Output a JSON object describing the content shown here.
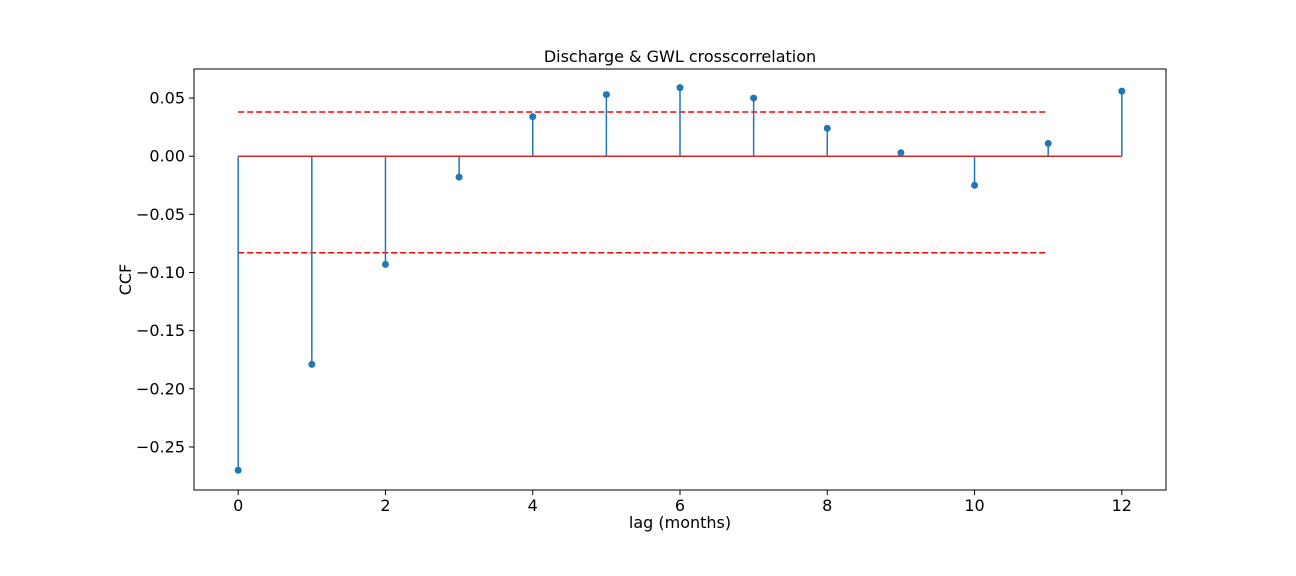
{
  "chart_data": {
    "type": "stem",
    "title": "Discharge & GWL crosscorrelation",
    "xlabel": "lag (months)",
    "ylabel": "CCF",
    "x": [
      0,
      1,
      2,
      3,
      4,
      5,
      6,
      7,
      8,
      9,
      10,
      11,
      12
    ],
    "values": [
      -0.27,
      -0.179,
      -0.093,
      -0.018,
      0.034,
      0.053,
      0.059,
      0.05,
      0.024,
      0.003,
      -0.025,
      0.011,
      0.056
    ],
    "xlim": [
      -0.6,
      12.6
    ],
    "ylim": [
      -0.287,
      0.075
    ],
    "xticks": [
      0,
      2,
      4,
      6,
      8,
      10,
      12
    ],
    "xtick_labels": [
      "0",
      "2",
      "4",
      "6",
      "8",
      "10",
      "12"
    ],
    "yticks": [
      -0.25,
      -0.2,
      -0.15,
      -0.1,
      -0.05,
      0.0,
      0.05
    ],
    "ytick_labels": [
      "−0.25",
      "−0.20",
      "−0.15",
      "−0.10",
      "−0.05",
      "0.00",
      "0.05"
    ],
    "baseline": 0,
    "confidence_bounds": [
      {
        "value": 0.038,
        "x_range": [
          0,
          11
        ]
      },
      {
        "value": -0.083,
        "x_range": [
          0,
          11
        ]
      }
    ],
    "grid": false,
    "colors": {
      "stem": "#1f77b4",
      "marker": "#1f77b4",
      "baseline": "#d62728",
      "bounds": "#ff0000"
    }
  }
}
